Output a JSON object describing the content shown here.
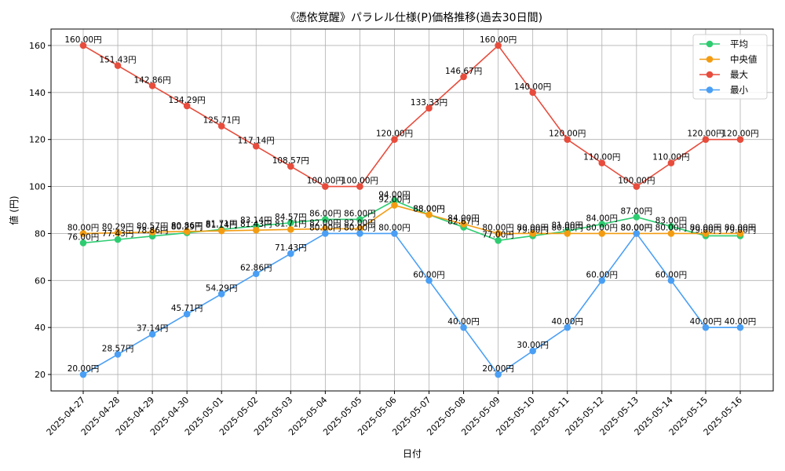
{
  "chart_data": {
    "type": "line",
    "title": "《憑依覚醒》パラレル仕様(P)価格推移(過去30日間)",
    "xlabel": "日付",
    "ylabel": "値 (円)",
    "value_suffix": "円",
    "ylim": [
      13,
      167
    ],
    "yticks": [
      20,
      40,
      60,
      80,
      100,
      120,
      140,
      160
    ],
    "grid": true,
    "legend_position": "top-right",
    "categories": [
      "2025-04-27",
      "2025-04-28",
      "2025-04-29",
      "2025-04-30",
      "2025-05-01",
      "2025-05-02",
      "2025-05-03",
      "2025-05-04",
      "2025-05-05",
      "2025-05-06",
      "2025-05-07",
      "2025-05-08",
      "2025-05-09",
      "2025-05-10",
      "2025-05-11",
      "2025-05-12",
      "2025-05-13",
      "2025-05-14",
      "2025-05-15",
      "2025-05-16"
    ],
    "series": [
      {
        "name": "平均",
        "color": "#2ecc71",
        "values": [
          76.0,
          77.43,
          78.86,
          80.29,
          81.71,
          83.14,
          84.57,
          86.0,
          86.0,
          94.0,
          88.0,
          82.67,
          77.0,
          79.0,
          81.0,
          84.0,
          87.0,
          83.0,
          79.0,
          79.0
        ]
      },
      {
        "name": "中央値",
        "color": "#f39c12",
        "values": [
          80.0,
          80.29,
          80.57,
          80.86,
          81.14,
          81.43,
          81.71,
          82.0,
          82.0,
          92.0,
          88.0,
          84.0,
          80.0,
          80.0,
          80.0,
          80.0,
          80.0,
          80.0,
          80.0,
          80.0
        ]
      },
      {
        "name": "最大",
        "color": "#e74c3c",
        "values": [
          160.0,
          151.43,
          142.86,
          134.29,
          125.71,
          117.14,
          108.57,
          100.0,
          100.0,
          120.0,
          133.33,
          146.67,
          160.0,
          140.0,
          120.0,
          110.0,
          100.0,
          110.0,
          120.0,
          120.0
        ]
      },
      {
        "name": "最小",
        "color": "#4a9ff5",
        "values": [
          20.0,
          28.57,
          37.14,
          45.71,
          54.29,
          62.86,
          71.43,
          80.0,
          80.0,
          80.0,
          60.0,
          40.0,
          20.0,
          30.0,
          40.0,
          60.0,
          80.0,
          60.0,
          40.0,
          40.0
        ]
      }
    ]
  }
}
